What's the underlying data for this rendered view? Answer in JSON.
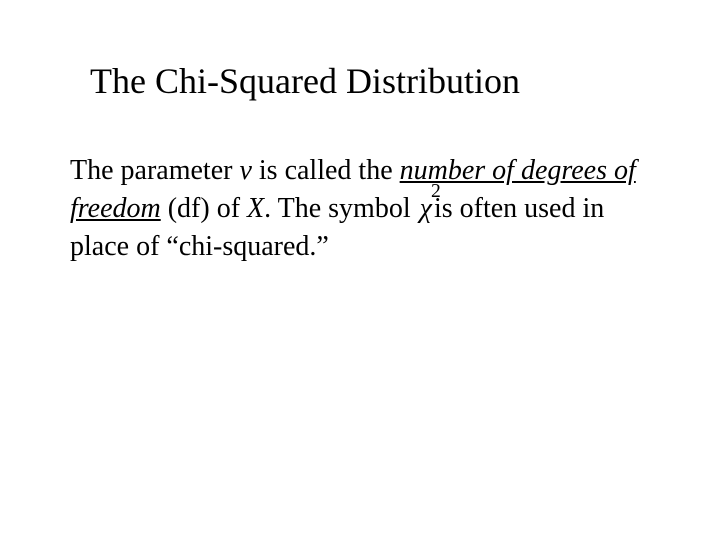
{
  "title": "The Chi-Squared Distribution",
  "body": {
    "seg1": "The parameter ",
    "v": "v",
    "seg2": " is called the ",
    "term1": "number of degrees of freedom",
    "seg3": " (df) of ",
    "X": "X",
    "seg4": ".  The symbol ",
    "chi": "χ",
    "chi_exp": "2",
    "seg5": "is often used in place of “chi-squared.”"
  },
  "style": {
    "title_fontsize": 36,
    "body_fontsize": 28,
    "text_color": "#000000",
    "background_color": "#ffffff",
    "font_family": "Times New Roman"
  }
}
